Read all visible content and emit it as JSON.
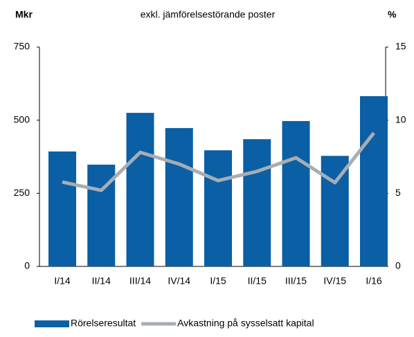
{
  "chart_data": {
    "type": "bar-line",
    "title": "exkl. jämförelsestörande poster",
    "y_label": "Mkr",
    "y2_label": "%",
    "categories": [
      "I/14",
      "II/14",
      "III/14",
      "IV/14",
      "I/15",
      "II/15",
      "III/15",
      "IV/15",
      "I/16"
    ],
    "series": [
      {
        "name": "Rörelseresultat",
        "type": "bar",
        "color": "#0b5fa5",
        "values": [
          393,
          348,
          525,
          473,
          397,
          435,
          497,
          378,
          582
        ]
      },
      {
        "name": "Avkastning på sysselsatt kapital",
        "type": "line",
        "axis": "y2",
        "color": "#a7adb3",
        "values": [
          5.77,
          5.2,
          7.8,
          7.0,
          5.87,
          6.5,
          7.43,
          5.73,
          9.13
        ]
      }
    ],
    "ylim": [
      0,
      750
    ],
    "yticks": [
      0,
      250,
      500,
      750
    ],
    "y2lim": [
      0,
      15
    ],
    "y2ticks": [
      0,
      5,
      10,
      15
    ],
    "grid": false,
    "legend": "bottom"
  }
}
